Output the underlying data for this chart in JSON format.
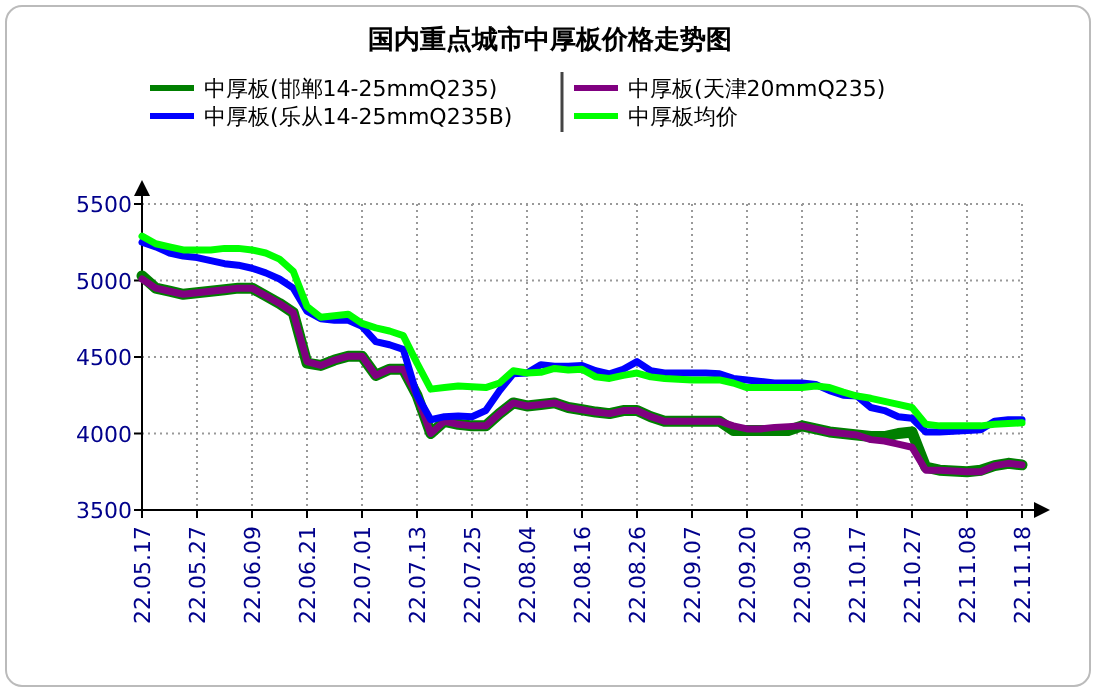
{
  "chart_data": {
    "type": "line",
    "title": "国内重点城市中厚板价格走势图",
    "categories": [
      "22.05.17",
      null,
      null,
      null,
      "22.05.27",
      null,
      null,
      null,
      "22.06.09",
      null,
      null,
      null,
      "22.06.21",
      null,
      null,
      null,
      "22.07.01",
      null,
      null,
      null,
      "22.07.13",
      null,
      null,
      null,
      "22.07.25",
      null,
      null,
      null,
      "22.08.04",
      null,
      null,
      null,
      "22.08.16",
      null,
      null,
      null,
      "22.08.26",
      null,
      null,
      null,
      "22.09.07",
      null,
      null,
      null,
      "22.09.20",
      null,
      null,
      null,
      "22.09.30",
      null,
      null,
      null,
      "22.10.17",
      null,
      null,
      null,
      "22.10.27",
      null,
      null,
      null,
      "22.11.08",
      null,
      null,
      null,
      "22.11.18"
    ],
    "series": [
      {
        "name": "中厚板(邯郸14-25mmQ235)",
        "color": "#007f00",
        "values": [
          5030,
          4950,
          4930,
          4910,
          4920,
          4930,
          4940,
          4950,
          4950,
          4900,
          4850,
          4790,
          4460,
          4445,
          4480,
          4505,
          4505,
          4380,
          4420,
          4420,
          4250,
          4000,
          4080,
          4060,
          4050,
          4050,
          4130,
          4200,
          4180,
          4190,
          4200,
          4170,
          4155,
          4140,
          4130,
          4150,
          4150,
          4110,
          4080,
          4080,
          4080,
          4080,
          4080,
          4020,
          4020,
          4020,
          4020,
          4020,
          4050,
          4030,
          4010,
          4000,
          3990,
          3980,
          3980,
          4000,
          4010,
          3780,
          3760,
          3755,
          3750,
          3760,
          3790,
          3805,
          3795
        ]
      },
      {
        "name": "中厚板(天津20mmQ235)",
        "color": "#800080",
        "values": [
          5010,
          4950,
          4930,
          4910,
          4920,
          4930,
          4940,
          4950,
          4950,
          4900,
          4850,
          4790,
          4470,
          4445,
          4480,
          4505,
          4505,
          4380,
          4420,
          4420,
          4250,
          4000,
          4080,
          4060,
          4050,
          4050,
          4130,
          4200,
          4180,
          4190,
          4200,
          4170,
          4155,
          4140,
          4130,
          4150,
          4150,
          4110,
          4080,
          4080,
          4080,
          4080,
          4080,
          4050,
          4030,
          4030,
          4040,
          4045,
          4050,
          4030,
          4010,
          4000,
          3990,
          3960,
          3950,
          3930,
          3910,
          3760,
          3760,
          3755,
          3750,
          3750,
          3790,
          3805,
          3795
        ]
      },
      {
        "name": "中厚板(乐从14-25mmQ235B)",
        "color": "#0000ff",
        "values": [
          5250,
          5220,
          5180,
          5160,
          5150,
          5130,
          5110,
          5100,
          5080,
          5050,
          5010,
          4950,
          4800,
          4750,
          4740,
          4740,
          4700,
          4600,
          4580,
          4550,
          4250,
          4090,
          4110,
          4115,
          4110,
          4150,
          4280,
          4390,
          4395,
          4450,
          4440,
          4440,
          4445,
          4410,
          4390,
          4420,
          4470,
          4410,
          4395,
          4395,
          4395,
          4395,
          4390,
          4360,
          4350,
          4340,
          4330,
          4330,
          4330,
          4320,
          4280,
          4250,
          4245,
          4170,
          4150,
          4110,
          4100,
          4010,
          4010,
          4015,
          4020,
          4025,
          4080,
          4090,
          4090
        ]
      },
      {
        "name": "中厚板均价",
        "color": "#00ff00",
        "values": [
          5290,
          5240,
          5220,
          5200,
          5200,
          5200,
          5210,
          5210,
          5200,
          5180,
          5140,
          5060,
          4830,
          4760,
          4770,
          4780,
          4720,
          4690,
          4670,
          4640,
          4460,
          4290,
          4300,
          4310,
          4305,
          4300,
          4330,
          4410,
          4395,
          4400,
          4425,
          4415,
          4420,
          4370,
          4360,
          4380,
          4395,
          4370,
          4360,
          4355,
          4350,
          4350,
          4350,
          4330,
          4300,
          4300,
          4300,
          4300,
          4300,
          4310,
          4300,
          4270,
          4245,
          4230,
          4210,
          4190,
          4170,
          4060,
          4050,
          4050,
          4050,
          4050,
          4060,
          4065,
          4070
        ]
      }
    ],
    "ylim": [
      3500,
      5500
    ],
    "yticks": [
      3500,
      4000,
      4500,
      5000,
      5500
    ],
    "grid": true,
    "legend": "top",
    "marker": "none",
    "line_style": "solid"
  }
}
